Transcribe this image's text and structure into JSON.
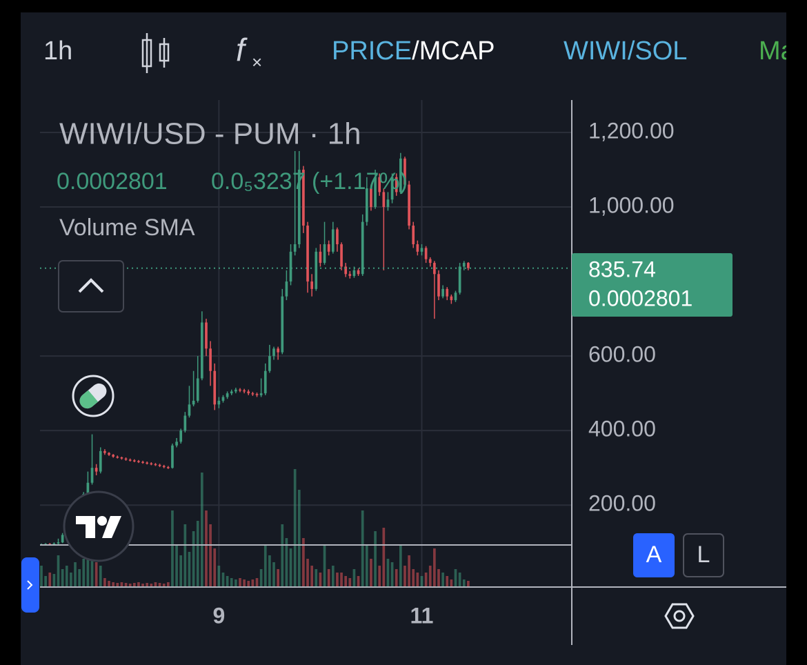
{
  "toolbar": {
    "interval": "1h",
    "price": "PRICE",
    "mcap": "/MCAP",
    "pair": "WIWI/SOL",
    "more": "Ma"
  },
  "chart_data": {
    "type": "candlestick",
    "title": "WIWI/USD - PUM · 1h",
    "price": "0.0002801",
    "change": "0.0₅3237 (+1.17%)",
    "indicator": "Volume SMA",
    "up_color": "#3f9a7c",
    "down_color": "#e0545a",
    "x": [
      0,
      1,
      2,
      3,
      4,
      5,
      6,
      7,
      8,
      9,
      10,
      11,
      12,
      13,
      14,
      15,
      16,
      17,
      18,
      19,
      20,
      21,
      22,
      23,
      24,
      25,
      26,
      27,
      28,
      29,
      30,
      31,
      32,
      33,
      34,
      35,
      36,
      37,
      38,
      39,
      40,
      41,
      42,
      43,
      44,
      45,
      46,
      47,
      48,
      49,
      50,
      51,
      52,
      53,
      54,
      55,
      56,
      57,
      58,
      59,
      60,
      61,
      62,
      63,
      64,
      65,
      66,
      67,
      68,
      69,
      70,
      71,
      72,
      73,
      74,
      75,
      76,
      77,
      78,
      79,
      80,
      81,
      82,
      83,
      84,
      85,
      86,
      87,
      88,
      89,
      90,
      91,
      92,
      93,
      94,
      95,
      96,
      97,
      98,
      99,
      100,
      101
    ],
    "open": [
      94,
      95,
      96,
      95,
      97,
      100,
      120,
      150,
      175,
      195,
      215,
      230,
      260,
      300,
      290,
      345,
      340,
      335,
      330,
      328,
      325,
      322,
      320,
      318,
      316,
      314,
      312,
      310,
      308,
      305,
      302,
      300,
      360,
      370,
      400,
      440,
      470,
      480,
      540,
      690,
      620,
      560,
      470,
      480,
      490,
      500,
      505,
      510,
      508,
      505,
      500,
      498,
      495,
      500,
      560,
      600,
      620,
      610,
      760,
      800,
      880,
      900,
      1100,
      950,
      800,
      780,
      880,
      850,
      900,
      880,
      940,
      900,
      840,
      820,
      815,
      830,
      820,
      960,
      1050,
      1000,
      1080,
      1040,
      1000,
      1020,
      1080,
      1040,
      1130,
      1060,
      950,
      900,
      880,
      890,
      860,
      850,
      820,
      760,
      780,
      760,
      750,
      770,
      840,
      850
    ],
    "high": [
      97,
      98,
      98,
      100,
      110,
      125,
      160,
      180,
      200,
      220,
      235,
      290,
      390,
      310,
      355,
      350,
      342,
      337,
      333,
      330,
      328,
      325,
      323,
      321,
      319,
      317,
      315,
      313,
      311,
      308,
      305,
      365,
      380,
      405,
      450,
      520,
      560,
      600,
      720,
      700,
      640,
      580,
      490,
      495,
      505,
      510,
      515,
      514,
      512,
      510,
      504,
      502,
      540,
      580,
      630,
      625,
      625,
      780,
      830,
      900,
      1150,
      1150,
      1110,
      960,
      820,
      890,
      900,
      960,
      910,
      960,
      945,
      905,
      850,
      828,
      840,
      835,
      980,
      1080,
      1060,
      1100,
      1090,
      1050,
      1040,
      1090,
      1090,
      1145,
      1135,
      1070,
      960,
      910,
      900,
      895,
      865,
      855,
      830,
      790,
      785,
      765,
      775,
      850,
      855,
      852
    ],
    "low": [
      92,
      94,
      93,
      94,
      95,
      98,
      118,
      145,
      170,
      190,
      210,
      225,
      255,
      280,
      285,
      335,
      332,
      327,
      325,
      322,
      319,
      317,
      315,
      313,
      311,
      309,
      307,
      305,
      302,
      299,
      297,
      298,
      355,
      365,
      395,
      435,
      465,
      475,
      535,
      600,
      520,
      455,
      460,
      475,
      485,
      495,
      500,
      503,
      500,
      495,
      493,
      490,
      490,
      495,
      555,
      590,
      590,
      605,
      750,
      790,
      870,
      890,
      930,
      770,
      760,
      775,
      840,
      845,
      870,
      875,
      880,
      830,
      812,
      808,
      810,
      815,
      815,
      950,
      990,
      995,
      1030,
      830,
      990,
      1010,
      1030,
      1035,
      1050,
      940,
      890,
      870,
      870,
      850,
      840,
      700,
      750,
      755,
      750,
      740,
      745,
      765,
      830,
      830
    ],
    "close": [
      95,
      96,
      95,
      97,
      100,
      120,
      150,
      175,
      195,
      215,
      230,
      260,
      300,
      290,
      345,
      340,
      335,
      330,
      328,
      325,
      322,
      320,
      318,
      316,
      314,
      312,
      310,
      308,
      305,
      302,
      300,
      360,
      370,
      400,
      440,
      470,
      480,
      540,
      690,
      620,
      560,
      470,
      480,
      490,
      500,
      505,
      510,
      508,
      505,
      500,
      498,
      495,
      500,
      560,
      600,
      620,
      610,
      760,
      800,
      880,
      900,
      1100,
      950,
      800,
      780,
      880,
      850,
      900,
      880,
      940,
      900,
      840,
      820,
      815,
      830,
      820,
      960,
      1050,
      1000,
      1080,
      1040,
      1000,
      1020,
      1080,
      1040,
      1130,
      1060,
      950,
      900,
      880,
      890,
      860,
      850,
      820,
      760,
      780,
      760,
      750,
      770,
      840,
      850,
      836
    ],
    "volume": [
      30,
      15,
      20,
      18,
      45,
      25,
      30,
      20,
      35,
      25,
      40,
      60,
      80,
      35,
      30,
      12,
      8,
      6,
      5,
      6,
      5,
      4,
      5,
      6,
      4,
      5,
      4,
      6,
      5,
      4,
      6,
      110,
      60,
      45,
      90,
      50,
      80,
      95,
      165,
      110,
      90,
      55,
      30,
      20,
      15,
      12,
      10,
      12,
      10,
      8,
      10,
      12,
      25,
      60,
      45,
      35,
      25,
      90,
      70,
      55,
      170,
      140,
      70,
      40,
      30,
      25,
      20,
      60,
      25,
      30,
      20,
      20,
      15,
      12,
      25,
      15,
      110,
      60,
      40,
      80,
      30,
      85,
      40,
      35,
      25,
      60,
      30,
      45,
      25,
      20,
      15,
      20,
      30,
      55,
      25,
      20,
      15,
      10,
      25,
      20,
      10,
      8
    ],
    "xlim": [
      0,
      125.5
    ],
    "xticks": [
      {
        "value": 42,
        "label": "9"
      },
      {
        "value": 90,
        "label": "11"
      }
    ],
    "ylim": [
      93,
      1287
    ],
    "yticks": [
      {
        "value": 200,
        "label": "200.00"
      },
      {
        "value": 400,
        "label": "400.00"
      },
      {
        "value": 600,
        "label": "600.00"
      },
      {
        "value": 1000,
        "label": "1,000.00"
      },
      {
        "value": 1200,
        "label": "1,200.00"
      }
    ],
    "vlim": [
      0,
      200
    ],
    "grid": true,
    "last_value": 835.74,
    "last_value_usd": "0.0002801",
    "scale_buttons": [
      "A",
      "L"
    ]
  }
}
